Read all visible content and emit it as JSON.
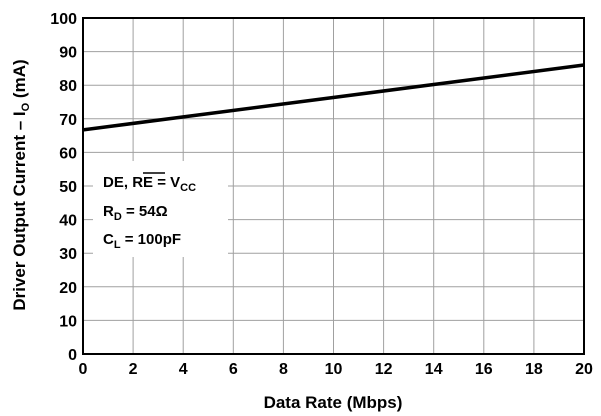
{
  "chart_data": {
    "type": "line",
    "title": "",
    "xlabel": "Data Rate (Mbps)",
    "ylabel_main": "Driver Output Current – I",
    "ylabel_sub": "O",
    "ylabel_unit": " (mA)",
    "xlim": [
      0,
      20
    ],
    "ylim": [
      0,
      100
    ],
    "x_ticks": [
      "0",
      "2",
      "4",
      "6",
      "8",
      "10",
      "12",
      "14",
      "16",
      "18",
      "20"
    ],
    "y_ticks": [
      "0",
      "10",
      "20",
      "30",
      "40",
      "50",
      "60",
      "70",
      "80",
      "90",
      "100"
    ],
    "grid": true,
    "series": [
      {
        "x": [
          0,
          20
        ],
        "y": [
          66.7,
          86.0
        ],
        "color": "#000000"
      }
    ],
    "annotations": [
      {
        "main": "DE, ",
        "overline": "RE",
        "rest": " = V",
        "sub": "CC"
      },
      {
        "main": "R",
        "sub": "D",
        "rest": " = 54Ω"
      },
      {
        "main": "C",
        "sub": "L",
        "rest": " = 100pF"
      }
    ]
  }
}
